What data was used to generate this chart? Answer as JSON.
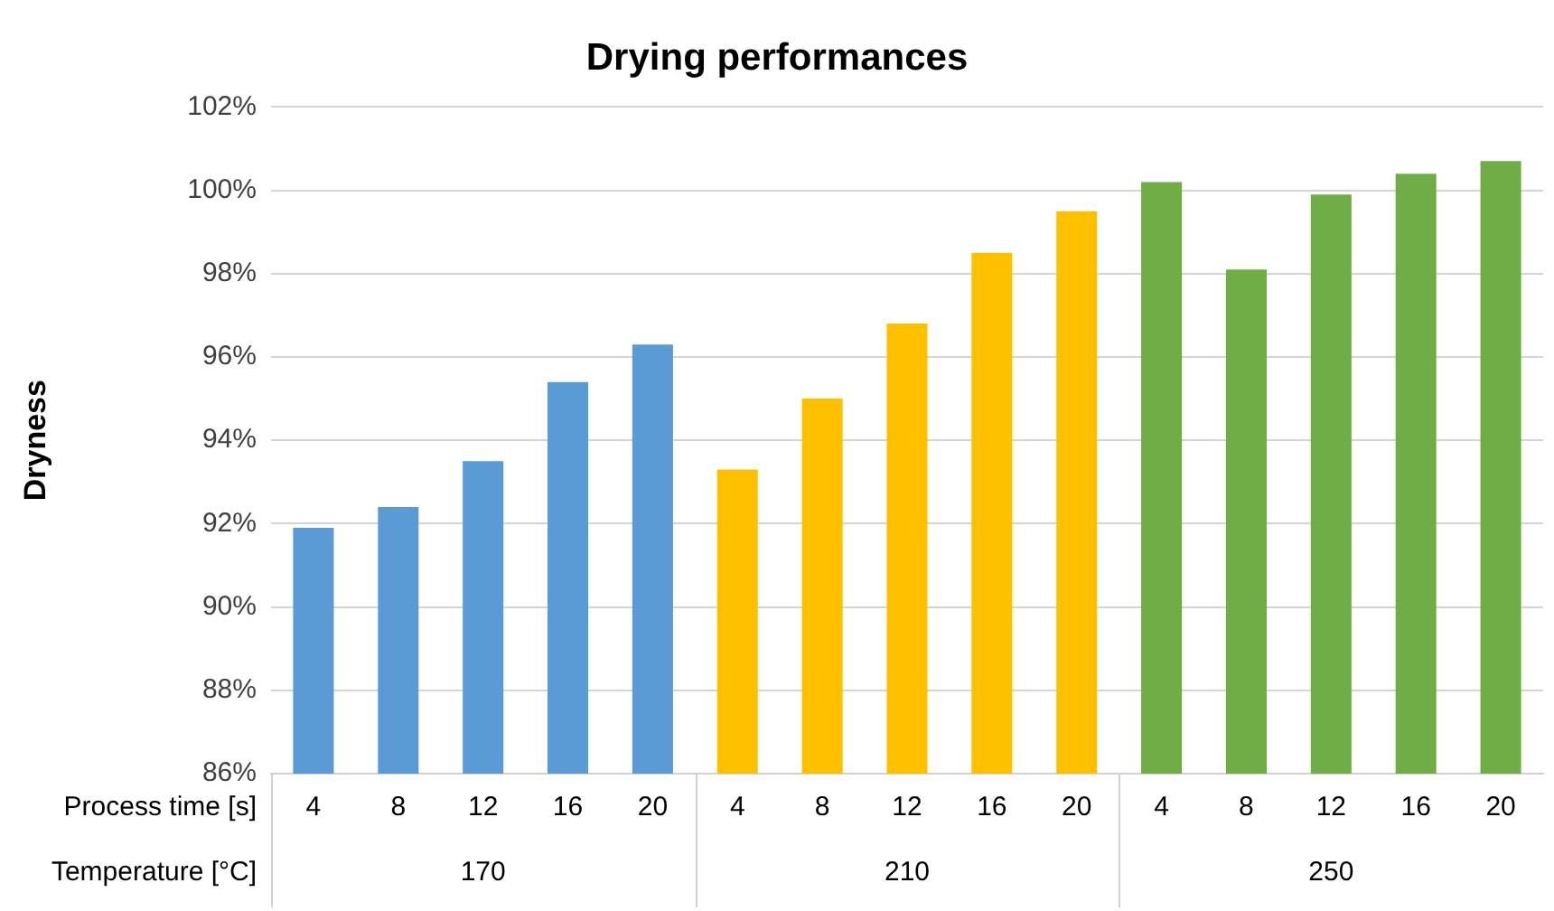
{
  "chart_data": {
    "type": "bar",
    "title": "Drying performances",
    "ylabel": "Dryness",
    "categories": [
      "4",
      "8",
      "12",
      "16",
      "20",
      "4",
      "8",
      "12",
      "16",
      "20",
      "4",
      "8",
      "12",
      "16",
      "20"
    ],
    "series": [
      {
        "name": "170",
        "color": "#5b9bd5",
        "values": [
          91.9,
          92.4,
          93.5,
          95.4,
          96.3,
          null,
          null,
          null,
          null,
          null,
          null,
          null,
          null,
          null,
          null
        ]
      },
      {
        "name": "210",
        "color": "#ffc000",
        "values": [
          null,
          null,
          null,
          null,
          null,
          93.3,
          95.0,
          96.8,
          98.5,
          99.5,
          null,
          null,
          null,
          null,
          null
        ]
      },
      {
        "name": "250",
        "color": "#70ad47",
        "values": [
          null,
          null,
          null,
          null,
          null,
          null,
          null,
          null,
          null,
          null,
          100.2,
          98.1,
          99.9,
          100.4,
          100.7
        ]
      }
    ],
    "ylim": [
      86,
      102
    ],
    "yticks": [
      {
        "value": 86,
        "label": "86%"
      },
      {
        "value": 88,
        "label": "88%"
      },
      {
        "value": 90,
        "label": "90%"
      },
      {
        "value": 92,
        "label": "92%"
      },
      {
        "value": 94,
        "label": "94%"
      },
      {
        "value": 96,
        "label": "96%"
      },
      {
        "value": 98,
        "label": "98%"
      },
      {
        "value": 100,
        "label": "100%"
      },
      {
        "value": 102,
        "label": "102%"
      }
    ],
    "grid": "y",
    "legend": false,
    "annotations": [
      "Process time [s]",
      "Temperature [°C]"
    ]
  }
}
